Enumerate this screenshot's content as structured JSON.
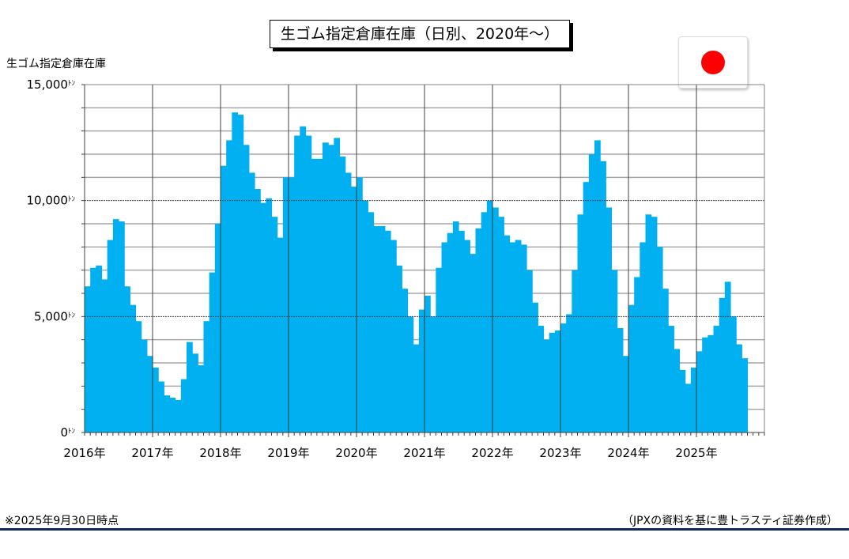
{
  "header": {
    "title": "生ゴム指定倉庫在庫（日別、2020年～）",
    "flag": "japan-flag-icon"
  },
  "footer": {
    "note": "※2025年9月30日時点",
    "source": "（JPXの資料を基に豊トラスティ証券作成）",
    "rule_color": "#0e2a5c"
  },
  "chart_data": {
    "type": "area",
    "title": "生ゴム指定倉庫在庫（日別、2020年～）",
    "ylabel": "生ゴム指定倉庫在庫",
    "yunit": "ﾄﾝ",
    "ylim": [
      0,
      15000
    ],
    "yticks": [
      {
        "v": 0,
        "label": "0"
      },
      {
        "v": 5000,
        "label": "5,000"
      },
      {
        "v": 10000,
        "label": "10,000"
      },
      {
        "v": 15000,
        "label": "15,000"
      }
    ],
    "xticks": [
      "2016年",
      "2017年",
      "2018年",
      "2019年",
      "2020年",
      "2021年",
      "2022年",
      "2023年",
      "2024年",
      "2025年"
    ],
    "start": "2016-01",
    "frequency": "monthly",
    "color": "#00b0f0",
    "grid": true,
    "values": [
      6300,
      7100,
      7200,
      6600,
      8300,
      9200,
      9100,
      6300,
      5500,
      4800,
      4000,
      3300,
      2800,
      2200,
      1600,
      1500,
      1400,
      2300,
      3900,
      3400,
      2900,
      4800,
      6900,
      9000,
      11500,
      12600,
      13800,
      13700,
      12400,
      11200,
      10500,
      9900,
      10100,
      9300,
      8400,
      11000,
      11000,
      12800,
      13200,
      12800,
      11800,
      11800,
      12500,
      12400,
      12700,
      11900,
      11200,
      10600,
      11000,
      10000,
      9500,
      8900,
      8900,
      8700,
      8300,
      7200,
      6200,
      5000,
      3800,
      5300,
      5900,
      5000,
      7100,
      8200,
      8600,
      9100,
      8700,
      8300,
      7700,
      8800,
      9500,
      10000,
      9700,
      9300,
      8500,
      8200,
      8300,
      8100,
      7000,
      5600,
      4600,
      4000,
      4300,
      4400,
      4700,
      5100,
      7000,
      9400,
      10800,
      12000,
      12600,
      11700,
      9700,
      7000,
      4500,
      3300,
      5500,
      6700,
      8200,
      9400,
      9300,
      8000,
      6200,
      4600,
      3600,
      2700,
      2100,
      2800,
      3500,
      4100,
      4200,
      4600,
      5800,
      6500,
      5000,
      3800,
      3200
    ]
  }
}
